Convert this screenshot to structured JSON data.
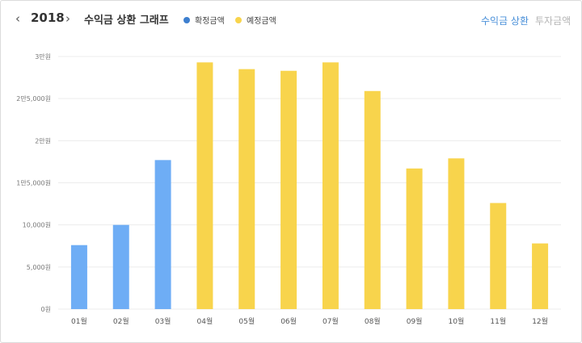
{
  "header": {
    "prev_icon": "chevron-left-icon",
    "next_icon": "chevron-right-icon",
    "year": "2018",
    "title": "수익금 상환 그래프",
    "tabs": [
      {
        "label": "수익금 상환",
        "active": true
      },
      {
        "label": "투자금액",
        "active": false
      }
    ]
  },
  "colors": {
    "confirmed": "#6eadf5",
    "confirmed_dot": "#3d7fcf",
    "planned": "#f8d44c",
    "accent": "#4a90d9",
    "inactive": "#b5b5b5",
    "grid": "#ececec"
  },
  "chart_data": {
    "type": "bar",
    "title": "수익금 상환 그래프",
    "categories": [
      "01월",
      "02월",
      "03월",
      "04월",
      "05월",
      "06월",
      "07월",
      "08월",
      "09월",
      "10월",
      "11월",
      "12월"
    ],
    "series": [
      {
        "name": "확정금액",
        "values": [
          7600,
          10000,
          17700,
          null,
          null,
          null,
          null,
          null,
          null,
          null,
          null,
          null
        ]
      },
      {
        "name": "예정금액",
        "values": [
          null,
          null,
          null,
          29300,
          28500,
          28300,
          29300,
          25900,
          16700,
          17900,
          12600,
          7800
        ]
      }
    ],
    "yticks": [
      {
        "value": 0,
        "label": "0원"
      },
      {
        "value": 5000,
        "label": "5,000원"
      },
      {
        "value": 10000,
        "label": "10,000원"
      },
      {
        "value": 15000,
        "label": "1만5,000원"
      },
      {
        "value": 20000,
        "label": "2만원"
      },
      {
        "value": 25000,
        "label": "2만5,000원"
      },
      {
        "value": 30000,
        "label": "3만원"
      }
    ],
    "ylim": [
      0,
      30000
    ],
    "grid": true,
    "legend": "top",
    "xlabel": "",
    "ylabel": ""
  }
}
